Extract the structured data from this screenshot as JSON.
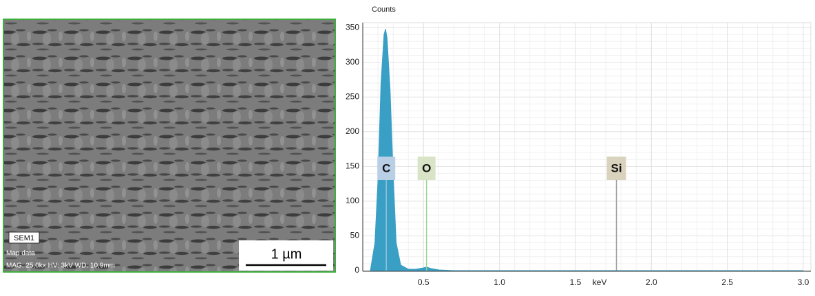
{
  "sem_panel": {
    "label": "SEM1",
    "info_title": "Map data",
    "info": "MAG: 25,0kx  HV: 3kV  WD: 10,9mm",
    "scale_bar": "1 µm"
  },
  "chart_data": {
    "type": "area",
    "y_label": "Counts",
    "x_label": "keV",
    "x": [
      0.15,
      0.18,
      0.2,
      0.22,
      0.24,
      0.25,
      0.26,
      0.28,
      0.3,
      0.32,
      0.35,
      0.4,
      0.45,
      0.5,
      0.52,
      0.55,
      0.6,
      0.7,
      3.0
    ],
    "values": [
      0,
      40,
      130,
      270,
      340,
      348,
      335,
      260,
      140,
      40,
      8,
      2,
      2,
      4,
      5,
      3,
      1,
      0,
      0
    ],
    "color": "#3a9fc4",
    "xlim": [
      0.1,
      3.05
    ],
    "ylim": [
      0,
      357
    ],
    "xticks": [
      0.5,
      {
        "value": 1,
        "label": "1.0"
      },
      1.5,
      {
        "value": 2,
        "label": "2.0"
      },
      2.5,
      {
        "value": 3,
        "label": "3.0"
      }
    ],
    "yticks": [
      0,
      50,
      100,
      150,
      200,
      250,
      300,
      350
    ],
    "grid": true,
    "annotations": [
      {
        "text": "C",
        "x": 0.255,
        "box_color": "#b8cfe6",
        "line_color": "#8fc3dc"
      },
      {
        "text": "O",
        "x": 0.52,
        "box_color": "#d9e3c5",
        "line_color": "#93d693"
      },
      {
        "text": "Si",
        "x": 1.77,
        "box_color": "#d9d3be",
        "line_color": "#9a9a9a"
      }
    ]
  }
}
